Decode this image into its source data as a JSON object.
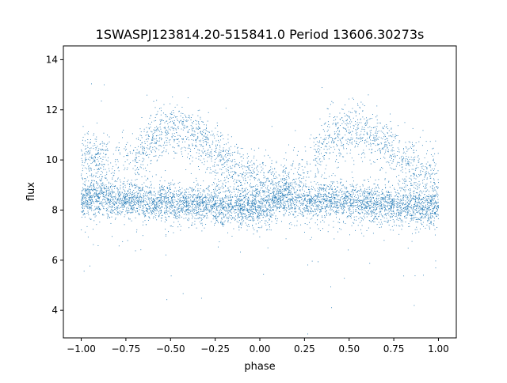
{
  "chart_data": {
    "type": "scatter",
    "title": "1SWASPJ123814.20-515841.0 Period 13606.30273s",
    "xlabel": "phase",
    "ylabel": "flux",
    "xlim": [
      -1.1,
      1.1
    ],
    "ylim": [
      2.9,
      14.55
    ],
    "x_ticks": [
      -1.0,
      -0.75,
      -0.5,
      -0.25,
      0.0,
      0.25,
      0.5,
      0.75,
      1.0
    ],
    "x_tick_labels": [
      "−1.00",
      "−0.75",
      "−0.50",
      "−0.25",
      "0.00",
      "0.25",
      "0.50",
      "0.75",
      "1.00"
    ],
    "y_ticks": [
      4,
      6,
      8,
      10,
      12,
      14
    ],
    "y_tick_labels": [
      "4",
      "6",
      "8",
      "10",
      "12",
      "14"
    ],
    "grid": false,
    "legend": "none",
    "marker_color": "#1f77b4",
    "series": [
      {
        "description_points": "phase-folded light curve (dense scatter of ~10k points); points below are representative samples",
        "x": [
          -1.0,
          -0.95,
          -0.9,
          -0.85,
          -0.8,
          -0.75,
          -0.7,
          -0.65,
          -0.6,
          -0.55,
          -0.5,
          -0.45,
          -0.4,
          -0.35,
          -0.3,
          -0.25,
          -0.2,
          -0.15,
          -0.1,
          -0.05,
          0.0,
          0.05,
          0.1,
          0.15,
          0.2,
          0.25,
          0.3,
          0.35,
          0.4,
          0.45,
          0.5,
          0.55,
          0.6,
          0.65,
          0.7,
          0.75,
          0.8,
          0.85,
          0.9,
          0.95,
          1.0
        ],
        "y": [
          8.4,
          8.5,
          8.5,
          8.4,
          8.4,
          8.4,
          8.4,
          8.4,
          8.3,
          8.3,
          8.3,
          8.2,
          8.2,
          8.2,
          8.2,
          8.2,
          8.1,
          8.1,
          8.1,
          8.1,
          8.1,
          8.2,
          8.4,
          8.5,
          8.5,
          8.4,
          8.4,
          8.4,
          8.4,
          8.4,
          8.3,
          8.3,
          8.3,
          8.2,
          8.2,
          8.2,
          8.2,
          8.1,
          8.1,
          8.1,
          8.1
        ]
      },
      {
        "name_hidden": "",
        "x": [
          -0.7,
          -0.6,
          -0.5,
          -0.4,
          -0.3,
          -0.2,
          -0.1,
          0.0,
          0.1,
          0.3,
          0.4,
          0.5,
          0.6,
          0.7,
          0.8,
          0.9,
          1.0
        ],
        "y": [
          10.0,
          10.9,
          11.2,
          11.1,
          10.6,
          10.0,
          9.4,
          9.1,
          8.8,
          10.0,
          10.9,
          11.2,
          11.1,
          10.6,
          10.0,
          9.4,
          9.1
        ]
      }
    ]
  }
}
